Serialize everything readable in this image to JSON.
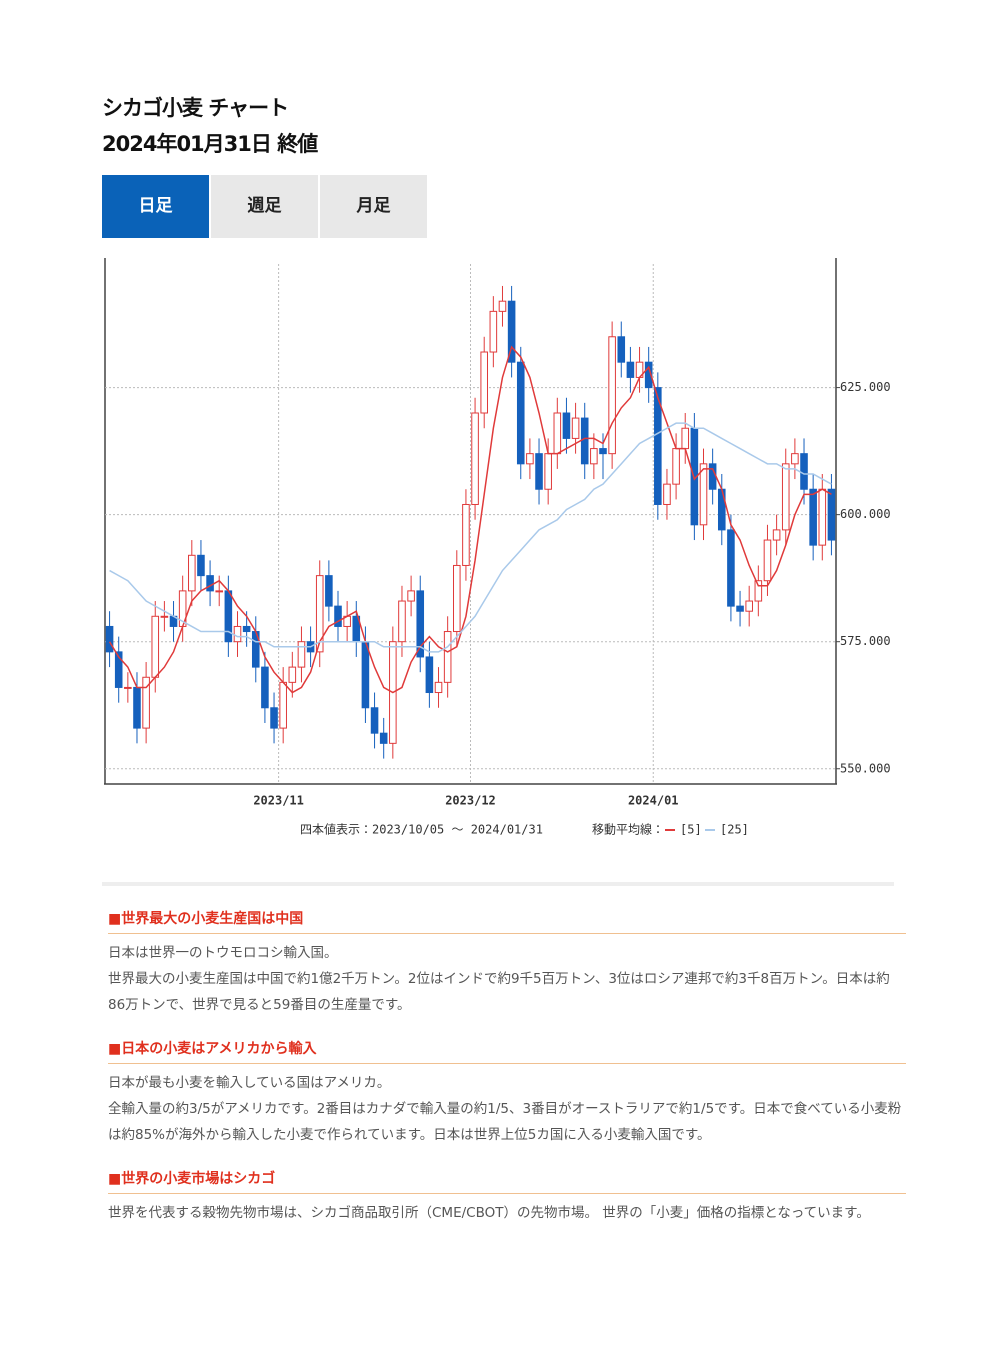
{
  "header": {
    "title": "シカゴ小麦 チャート",
    "subtitle": "2024年01月31日 終値"
  },
  "tabs": [
    "日足",
    "週足",
    "月足"
  ],
  "chart_data": {
    "type": "candlestick",
    "open": [
      578,
      573,
      566,
      566,
      558,
      568,
      580,
      580,
      578,
      585,
      592,
      588,
      585,
      585,
      575,
      578,
      577,
      570,
      562,
      558,
      567,
      570,
      575,
      573,
      588,
      582,
      578,
      580,
      575,
      562,
      557,
      555,
      575,
      583,
      585,
      572,
      565,
      567,
      577,
      590,
      602,
      620,
      632,
      640,
      642,
      630,
      610,
      612,
      605,
      612,
      620,
      615,
      619,
      610,
      613,
      612,
      635,
      630,
      627,
      630,
      625,
      602,
      606,
      613,
      617,
      598,
      610,
      605,
      597,
      582,
      581,
      583,
      587,
      595,
      597,
      610,
      612,
      605,
      594,
      605
    ],
    "high": [
      581,
      576,
      569,
      569,
      571,
      583,
      583,
      583,
      588,
      595,
      595,
      591,
      588,
      588,
      581,
      581,
      580,
      573,
      565,
      570,
      573,
      578,
      578,
      591,
      591,
      585,
      583,
      583,
      578,
      565,
      560,
      578,
      586,
      588,
      588,
      575,
      570,
      580,
      593,
      605,
      623,
      635,
      643,
      645,
      645,
      633,
      615,
      615,
      615,
      623,
      623,
      622,
      622,
      616,
      616,
      638,
      638,
      633,
      633,
      633,
      628,
      609,
      616,
      620,
      620,
      613,
      613,
      608,
      600,
      585,
      586,
      590,
      598,
      600,
      613,
      615,
      615,
      608,
      608,
      608
    ],
    "low": [
      570,
      563,
      563,
      555,
      555,
      565,
      577,
      575,
      575,
      582,
      585,
      582,
      582,
      572,
      572,
      574,
      567,
      559,
      555,
      555,
      564,
      567,
      570,
      570,
      579,
      575,
      575,
      572,
      559,
      554,
      552,
      552,
      572,
      580,
      569,
      562,
      562,
      564,
      574,
      587,
      599,
      617,
      629,
      637,
      627,
      607,
      607,
      602,
      602,
      609,
      612,
      612,
      607,
      607,
      607,
      609,
      627,
      624,
      624,
      622,
      599,
      599,
      603,
      610,
      595,
      595,
      602,
      594,
      579,
      578,
      578,
      580,
      584,
      592,
      594,
      607,
      602,
      591,
      591,
      592
    ],
    "close": [
      573,
      566,
      566,
      558,
      568,
      580,
      580,
      578,
      585,
      592,
      588,
      585,
      585,
      575,
      578,
      577,
      570,
      562,
      558,
      567,
      570,
      575,
      573,
      588,
      582,
      578,
      580,
      575,
      562,
      557,
      555,
      575,
      583,
      585,
      572,
      565,
      567,
      577,
      590,
      602,
      620,
      632,
      640,
      642,
      630,
      610,
      612,
      605,
      612,
      620,
      615,
      619,
      610,
      613,
      612,
      635,
      630,
      627,
      630,
      625,
      602,
      606,
      613,
      617,
      598,
      610,
      605,
      597,
      582,
      581,
      583,
      587,
      595,
      597,
      610,
      612,
      605,
      594,
      605,
      595
    ],
    "series": [
      {
        "name": "[5]",
        "color": "#e03a3a",
        "values": [
          575,
          572,
          570,
          566,
          566,
          568,
          570,
          573,
          578,
          583,
          585,
          586,
          587,
          585,
          582,
          580,
          577,
          572,
          569,
          567,
          565,
          566,
          569,
          575,
          578,
          579,
          580,
          581,
          575,
          570,
          566,
          565,
          566,
          571,
          574,
          576,
          574,
          573,
          574,
          580,
          591,
          604,
          617,
          627,
          633,
          631,
          627,
          620,
          612,
          612,
          613,
          614,
          615,
          615,
          614,
          618,
          621,
          623,
          627,
          629,
          623,
          618,
          613,
          613,
          607,
          609,
          609,
          605,
          598,
          595,
          590,
          586,
          586,
          589,
          594,
          600,
          604,
          604,
          605,
          604
        ]
      },
      {
        "name": "[25]",
        "color": "#a9c9ea",
        "values": [
          589,
          588,
          587,
          585,
          583,
          582,
          581,
          580,
          579,
          578,
          577,
          577,
          577,
          577,
          576,
          576,
          575,
          575,
          574,
          574,
          574,
          574,
          574,
          575,
          575,
          575,
          575,
          575,
          575,
          575,
          574,
          574,
          574,
          574,
          574,
          573,
          573,
          574,
          576,
          578,
          580,
          583,
          586,
          589,
          591,
          593,
          595,
          597,
          598,
          599,
          601,
          602,
          603,
          605,
          606,
          608,
          610,
          612,
          614,
          615,
          616,
          617,
          618,
          618,
          617,
          617,
          616,
          615,
          614,
          613,
          612,
          611,
          610,
          610,
          609,
          609,
          608,
          608,
          607,
          606
        ]
      }
    ],
    "up_color": "#e03a3a",
    "down_color": "#1560bd",
    "ylim": [
      547,
      650.5
    ],
    "yticks": [
      {
        "value": 550,
        "label": "550.000"
      },
      {
        "value": 575,
        "label": "575.000"
      },
      {
        "value": 600,
        "label": "600.000"
      },
      {
        "value": 625,
        "label": "625.000"
      }
    ],
    "xlim": [
      -0.5,
      79.5
    ],
    "xticks": [
      {
        "value": 18.5,
        "label": "2023/11"
      },
      {
        "value": 39.5,
        "label": "2023/12"
      },
      {
        "value": 59.5,
        "label": "2024/01"
      }
    ],
    "grid": true,
    "range_label": "四本値表示：2023/10/05 〜 2024/01/31",
    "legend_title": "移動平均線："
  },
  "sections": [
    {
      "heading": "■世界最大の小麦生産国は中国",
      "paragraphs": [
        "日本は世界一のトウモロコシ輸入国。",
        "世界最大の小麦生産国は中国で約1億2千万トン。2位はインドで約9千5百万トン、3位はロシア連邦で約3千8百万トン。日本は約86万トンで、世界で見ると59番目の生産量です。"
      ]
    },
    {
      "heading": "■日本の小麦はアメリカから輸入",
      "paragraphs": [
        "日本が最も小麦を輸入している国はアメリカ。",
        "全輸入量の約3/5がアメリカです。2番目はカナダで輸入量の約1/5、3番目がオーストラリアで約1/5です。日本で食べている小麦粉は約85%が海外から輸入した小麦で作られています。日本は世界上位5カ国に入る小麦輸入国です。"
      ]
    },
    {
      "heading": "■世界の小麦市場はシカゴ",
      "paragraphs": [
        "世界を代表する穀物先物市場は、シカゴ商品取引所（CME/CBOT）の先物市場。 世界の「小麦」価格の指標となっています。"
      ]
    }
  ]
}
